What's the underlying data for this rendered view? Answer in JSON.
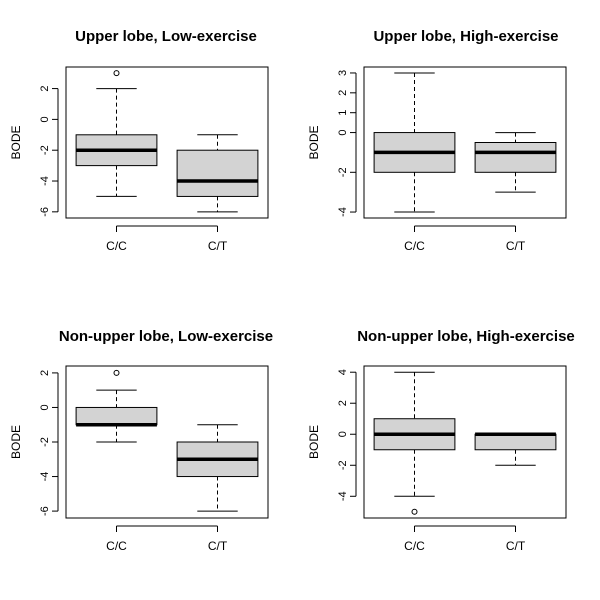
{
  "chart_data": [
    {
      "type": "box",
      "title": "Upper lobe, Low-exercise",
      "ylabel": "BODE",
      "categories": [
        "C/C",
        "C/T"
      ],
      "ylim": [
        -6.4,
        3.4
      ],
      "yticks": [
        2,
        0,
        -2,
        -4,
        -6
      ],
      "boxes": [
        {
          "category": "C/C",
          "whisker_low": -5,
          "q1": -3,
          "median": -2,
          "q3": -1,
          "whisker_high": 2,
          "outliers": [
            3
          ]
        },
        {
          "category": "C/T",
          "whisker_low": -6,
          "q1": -5,
          "median": -4,
          "q3": -2,
          "whisker_high": -1,
          "outliers": []
        }
      ]
    },
    {
      "type": "box",
      "title": "Upper lobe, High-exercise",
      "ylabel": "BODE",
      "categories": [
        "C/C",
        "C/T"
      ],
      "ylim": [
        -4.3,
        3.3
      ],
      "yticks": [
        3,
        2,
        1,
        0,
        -2,
        -4
      ],
      "boxes": [
        {
          "category": "C/C",
          "whisker_low": -4,
          "q1": -2,
          "median": -1,
          "q3": 0,
          "whisker_high": 3,
          "outliers": []
        },
        {
          "category": "C/T",
          "whisker_low": -3,
          "q1": -2,
          "median": -1,
          "q3": -0.5,
          "whisker_high": 0,
          "outliers": []
        }
      ]
    },
    {
      "type": "box",
      "title": "Non-upper lobe, Low-exercise",
      "ylabel": "BODE",
      "categories": [
        "C/C",
        "C/T"
      ],
      "ylim": [
        -6.4,
        2.4
      ],
      "yticks": [
        2,
        0,
        -2,
        -4,
        -6
      ],
      "boxes": [
        {
          "category": "C/C",
          "whisker_low": -2,
          "q1": -1,
          "median": -1,
          "q3": 0,
          "whisker_high": 1,
          "outliers": [
            2
          ]
        },
        {
          "category": "C/T",
          "whisker_low": -6,
          "q1": -4,
          "median": -3,
          "q3": -2,
          "whisker_high": -1,
          "outliers": []
        }
      ]
    },
    {
      "type": "box",
      "title": "Non-upper lobe, High-exercise",
      "ylabel": "BODE",
      "categories": [
        "C/C",
        "C/T"
      ],
      "ylim": [
        -5.4,
        4.4
      ],
      "yticks": [
        4,
        2,
        0,
        -2,
        -4
      ],
      "boxes": [
        {
          "category": "C/C",
          "whisker_low": -4,
          "q1": -1,
          "median": 0,
          "q3": 1,
          "whisker_high": 4,
          "outliers": [
            -5
          ]
        },
        {
          "category": "C/T",
          "whisker_low": -2,
          "q1": -1,
          "median": 0,
          "q3": 0,
          "whisker_high": 0,
          "outliers": []
        }
      ]
    }
  ],
  "colors": {
    "box_fill": "#d3d3d3",
    "stroke": "#000000",
    "background": "#ffffff"
  }
}
